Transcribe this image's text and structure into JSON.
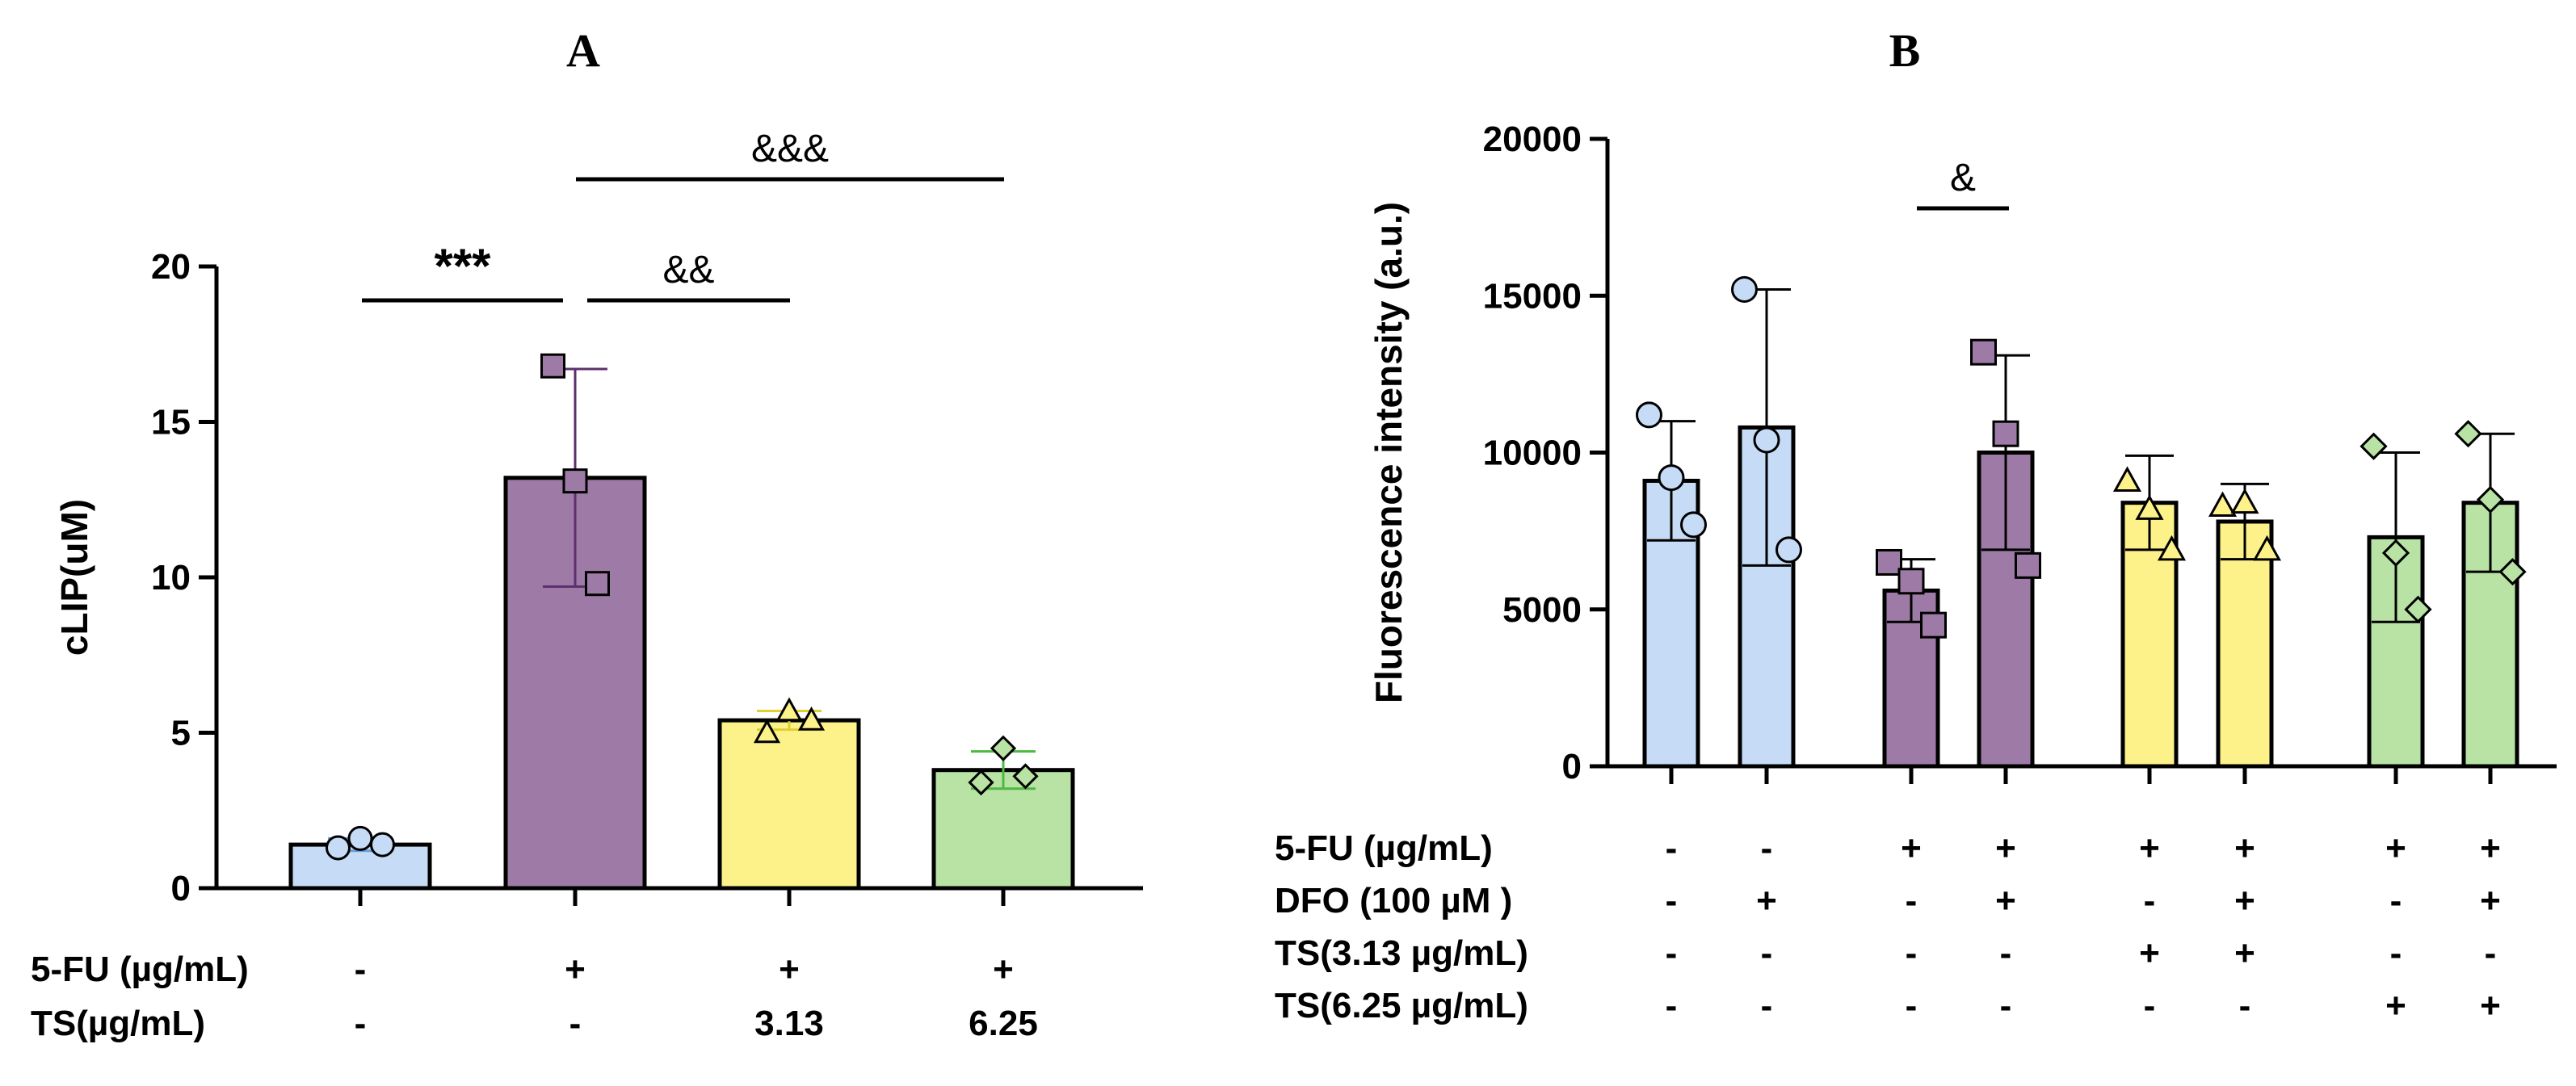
{
  "chart_data": [
    {
      "panel": "A",
      "type": "bar",
      "ylabel": "cLIP(uM)",
      "ylim": [
        0,
        20
      ],
      "yticks": [
        0,
        5,
        10,
        15,
        20
      ],
      "bars": [
        {
          "mean": 1.4,
          "err": 0.2,
          "points": [
            1.3,
            1.6,
            1.4
          ],
          "color": "#c6dbf5",
          "marker": "circle"
        },
        {
          "mean": 13.2,
          "err": 3.5,
          "points": [
            16.8,
            13.1,
            9.8
          ],
          "color": "#9d7ba6",
          "marker": "square"
        },
        {
          "mean": 5.4,
          "err": 0.3,
          "points": [
            5.0,
            5.7,
            5.4
          ],
          "color": "#fdf18a",
          "marker": "triangle"
        },
        {
          "mean": 3.8,
          "err": 0.6,
          "points": [
            3.4,
            4.5,
            3.6
          ],
          "color": "#b8e3a4",
          "marker": "diamond"
        }
      ],
      "conditions": [
        {
          "label": "5-FU (µg/mL)",
          "values": [
            "-",
            "+",
            "+",
            "+"
          ]
        },
        {
          "label": "TS(µg/mL)",
          "values": [
            "-",
            "-",
            "3.13",
            "6.25"
          ]
        }
      ],
      "significance": [
        {
          "from": 0,
          "to": 1,
          "text": "***"
        },
        {
          "from": 1,
          "to": 2,
          "text": "&&"
        },
        {
          "from": 1,
          "to": 3,
          "text": "&&&"
        }
      ]
    },
    {
      "panel": "B",
      "type": "bar",
      "ylabel": "Fluorescence intensity (a.u.)",
      "ylim": [
        0,
        20000
      ],
      "yticks": [
        0,
        5000,
        10000,
        15000,
        20000
      ],
      "bars": [
        {
          "mean": 9100,
          "err": 1900,
          "points": [
            11200,
            9200,
            7700
          ],
          "color": "#c6dbf5",
          "marker": "circle"
        },
        {
          "mean": 10800,
          "err": 4400,
          "points": [
            15200,
            10400,
            6900
          ],
          "color": "#c6dbf5",
          "marker": "circle"
        },
        {
          "mean": 5600,
          "err": 1000,
          "points": [
            6500,
            5900,
            4500
          ],
          "color": "#9d7ba6",
          "marker": "square"
        },
        {
          "mean": 10000,
          "err": 3100,
          "points": [
            13200,
            10600,
            6400
          ],
          "color": "#9d7ba6",
          "marker": "square"
        },
        {
          "mean": 8400,
          "err": 1500,
          "points": [
            9100,
            8200,
            6900
          ],
          "color": "#fdf18a",
          "marker": "triangle"
        },
        {
          "mean": 7800,
          "err": 1200,
          "points": [
            8300,
            8400,
            6900
          ],
          "color": "#fdf18a",
          "marker": "triangle"
        },
        {
          "mean": 7300,
          "err": 2700,
          "points": [
            10200,
            6800,
            5000
          ],
          "color": "#b8e3a4",
          "marker": "diamond"
        },
        {
          "mean": 8400,
          "err": 2200,
          "points": [
            10600,
            8500,
            6200
          ],
          "color": "#b8e3a4",
          "marker": "diamond"
        }
      ],
      "conditions": [
        {
          "label": "5-FU (µg/mL)",
          "values": [
            "-",
            "-",
            "+",
            "+",
            "+",
            "+",
            "+",
            "+"
          ]
        },
        {
          "label": "DFO (100 µM )",
          "values": [
            "-",
            "+",
            "-",
            "+",
            "-",
            "+",
            "-",
            "+"
          ]
        },
        {
          "label": "TS(3.13 µg/mL)",
          "values": [
            "-",
            "-",
            "-",
            "-",
            "+",
            "+",
            "-",
            "-"
          ]
        },
        {
          "label": "TS(6.25 µg/mL)",
          "values": [
            "-",
            "-",
            "-",
            "-",
            "-",
            "-",
            "+",
            "+"
          ]
        }
      ],
      "significance": [
        {
          "from": 2,
          "to": 3,
          "text": "&"
        }
      ]
    }
  ]
}
